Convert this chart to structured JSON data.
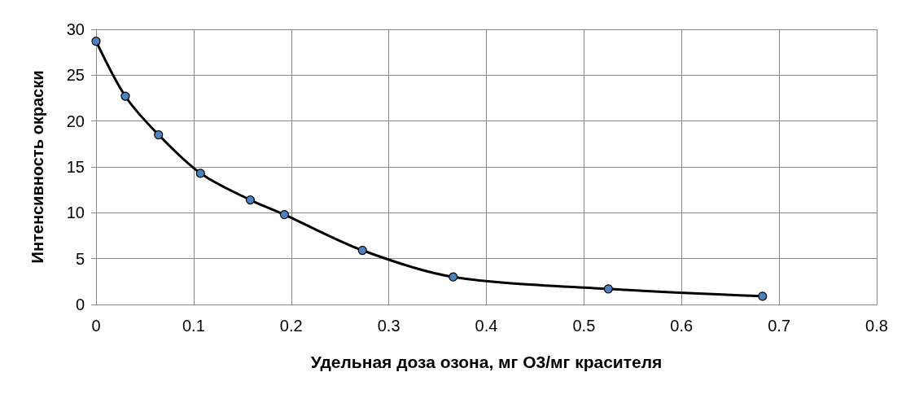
{
  "chart_data": {
    "type": "line",
    "xlabel": "Удельная доза озона, мг О3/мг красителя",
    "ylabel": "Интенсивность окраски",
    "series": [
      {
        "color": "#000000",
        "x": [
          0,
          0.03,
          0.064,
          0.107,
          0.158,
          0.193,
          0.273,
          0.366,
          0.525,
          0.683
        ],
        "values": [
          28.7,
          22.7,
          18.5,
          14.3,
          11.4,
          9.8,
          5.9,
          3.0,
          1.7,
          0.9
        ]
      }
    ],
    "xlim": [
      0,
      0.8
    ],
    "xticks": [
      0,
      0.1,
      0.2,
      0.3,
      0.4,
      0.5,
      0.6,
      0.7,
      0.8
    ],
    "ylim": [
      0,
      30
    ],
    "yticks": [
      0,
      5,
      10,
      15,
      20,
      25,
      30
    ],
    "grid": true,
    "marker": "circle",
    "line_style": "solid"
  }
}
